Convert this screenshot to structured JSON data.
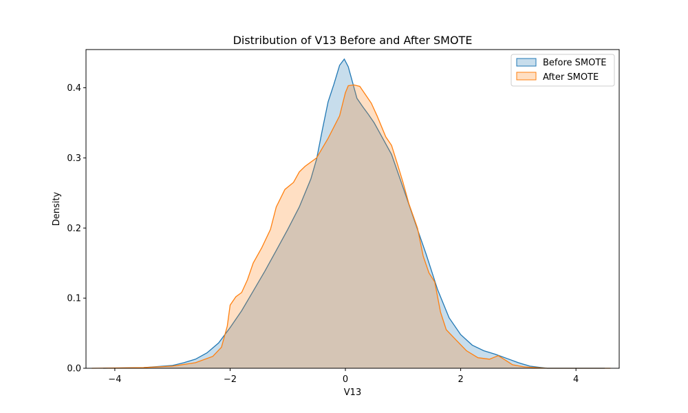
{
  "chart_data": {
    "type": "area",
    "title": "Distribution of V13 Before and After SMOTE",
    "xlabel": "V13",
    "ylabel": "Density",
    "xlim": [
      -4.5,
      4.75
    ],
    "ylim": [
      0,
      0.4545
    ],
    "x_ticks": [
      -4,
      -2,
      0,
      2,
      4
    ],
    "x_tick_labels": [
      "−4",
      "−2",
      "0",
      "2",
      "4"
    ],
    "y_ticks": [
      0.0,
      0.1,
      0.2,
      0.3,
      0.4
    ],
    "y_tick_labels": [
      "0.0",
      "0.1",
      "0.2",
      "0.3",
      "0.4"
    ],
    "grid": false,
    "legend_position": "top-right",
    "series": [
      {
        "name": "Before SMOTE",
        "color": "#1f77b4",
        "points": [
          [
            -4.2,
            0.0
          ],
          [
            -3.5,
            0.001
          ],
          [
            -3.0,
            0.004
          ],
          [
            -2.8,
            0.008
          ],
          [
            -2.6,
            0.013
          ],
          [
            -2.4,
            0.022
          ],
          [
            -2.2,
            0.036
          ],
          [
            -2.0,
            0.058
          ],
          [
            -1.8,
            0.082
          ],
          [
            -1.6,
            0.11
          ],
          [
            -1.4,
            0.138
          ],
          [
            -1.2,
            0.168
          ],
          [
            -1.0,
            0.198
          ],
          [
            -0.8,
            0.23
          ],
          [
            -0.6,
            0.27
          ],
          [
            -0.5,
            0.298
          ],
          [
            -0.4,
            0.34
          ],
          [
            -0.3,
            0.38
          ],
          [
            -0.2,
            0.405
          ],
          [
            -0.1,
            0.432
          ],
          [
            -0.02,
            0.441
          ],
          [
            0.05,
            0.43
          ],
          [
            0.1,
            0.415
          ],
          [
            0.2,
            0.385
          ],
          [
            0.3,
            0.373
          ],
          [
            0.4,
            0.362
          ],
          [
            0.5,
            0.35
          ],
          [
            0.6,
            0.335
          ],
          [
            0.8,
            0.305
          ],
          [
            1.0,
            0.258
          ],
          [
            1.2,
            0.21
          ],
          [
            1.4,
            0.163
          ],
          [
            1.6,
            0.112
          ],
          [
            1.8,
            0.072
          ],
          [
            2.0,
            0.048
          ],
          [
            2.2,
            0.033
          ],
          [
            2.4,
            0.025
          ],
          [
            2.6,
            0.02
          ],
          [
            2.8,
            0.014
          ],
          [
            3.0,
            0.008
          ],
          [
            3.2,
            0.003
          ],
          [
            3.5,
            0.0
          ],
          [
            4.0,
            0.0
          ],
          [
            4.5,
            0.0
          ]
        ]
      },
      {
        "name": "After SMOTE",
        "color": "#ff7f0e",
        "points": [
          [
            -4.4,
            0.0
          ],
          [
            -3.5,
            0.001
          ],
          [
            -3.0,
            0.003
          ],
          [
            -2.6,
            0.008
          ],
          [
            -2.3,
            0.017
          ],
          [
            -2.15,
            0.03
          ],
          [
            -2.05,
            0.06
          ],
          [
            -2.0,
            0.09
          ],
          [
            -1.9,
            0.102
          ],
          [
            -1.8,
            0.108
          ],
          [
            -1.7,
            0.126
          ],
          [
            -1.6,
            0.15
          ],
          [
            -1.45,
            0.172
          ],
          [
            -1.3,
            0.198
          ],
          [
            -1.2,
            0.23
          ],
          [
            -1.05,
            0.255
          ],
          [
            -0.9,
            0.265
          ],
          [
            -0.8,
            0.28
          ],
          [
            -0.7,
            0.288
          ],
          [
            -0.5,
            0.3
          ],
          [
            -0.3,
            0.328
          ],
          [
            -0.1,
            0.36
          ],
          [
            0.0,
            0.393
          ],
          [
            0.05,
            0.403
          ],
          [
            0.15,
            0.404
          ],
          [
            0.25,
            0.402
          ],
          [
            0.35,
            0.39
          ],
          [
            0.45,
            0.378
          ],
          [
            0.55,
            0.36
          ],
          [
            0.7,
            0.33
          ],
          [
            0.8,
            0.318
          ],
          [
            0.9,
            0.292
          ],
          [
            1.0,
            0.265
          ],
          [
            1.1,
            0.235
          ],
          [
            1.25,
            0.2
          ],
          [
            1.35,
            0.16
          ],
          [
            1.45,
            0.136
          ],
          [
            1.55,
            0.123
          ],
          [
            1.65,
            0.08
          ],
          [
            1.75,
            0.055
          ],
          [
            1.9,
            0.042
          ],
          [
            2.1,
            0.025
          ],
          [
            2.3,
            0.015
          ],
          [
            2.5,
            0.013
          ],
          [
            2.65,
            0.018
          ],
          [
            2.75,
            0.013
          ],
          [
            2.9,
            0.005
          ],
          [
            3.1,
            0.002
          ],
          [
            3.5,
            0.0
          ],
          [
            4.0,
            0.0
          ],
          [
            4.6,
            0.0
          ]
        ]
      }
    ]
  }
}
